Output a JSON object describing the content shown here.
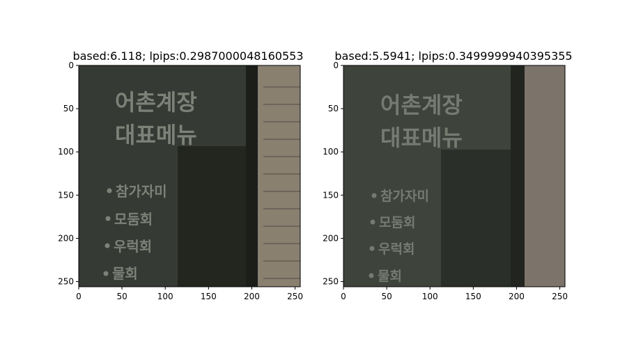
{
  "chart_data": [
    {
      "type": "image",
      "title": "based:6.118; lpips:0.2987000048160553",
      "xticks": [
        "0",
        "50",
        "100",
        "150",
        "200",
        "250"
      ],
      "yticks": [
        "0",
        "50",
        "100",
        "150",
        "200",
        "250"
      ],
      "xlim": [
        0,
        256
      ],
      "ylim": [
        256,
        0
      ],
      "image": {
        "sign_line1": "어촌계장",
        "sign_line2": "대표메뉴",
        "menu": [
          "참가자미",
          "모둠회",
          "우럭회",
          "물회"
        ],
        "colors": {
          "background": "#2f322c",
          "panel": "#353a34",
          "dark_panel": "#23261f",
          "text": "#7d8278",
          "wall": "#8a8070"
        }
      }
    },
    {
      "type": "image",
      "title": "based:5.5941; lpips:0.3499999940395355",
      "xticks": [
        "0",
        "50",
        "100",
        "150",
        "200",
        "250"
      ],
      "yticks": [
        "0",
        "50",
        "100",
        "150",
        "200",
        "250"
      ],
      "xlim": [
        0,
        256
      ],
      "ylim": [
        256,
        0
      ],
      "image": {
        "sign_line1": "어촌계장",
        "sign_line2": "대표메뉴",
        "menu": [
          "참가자미",
          "모둠회",
          "우럭회",
          "물회"
        ],
        "colors": {
          "background": "#3a3e37",
          "panel": "#3e433c",
          "dark_panel": "#2b2f29",
          "text": "#767b71",
          "wall": "#7c746a"
        }
      }
    }
  ]
}
